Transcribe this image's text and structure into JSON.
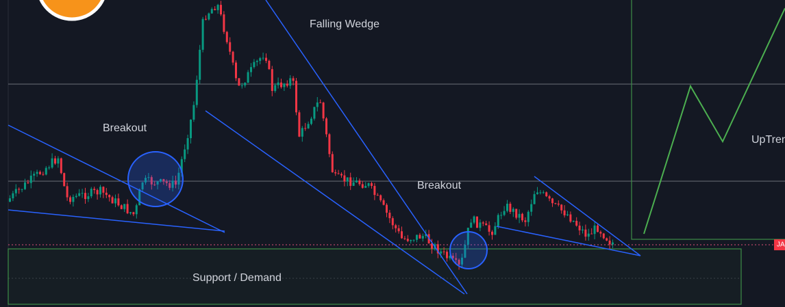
{
  "annotations": {
    "falling_wedge": "Falling Wedge",
    "breakout_left": "Breakout",
    "breakout_right": "Breakout",
    "support": "Support / Demand",
    "uptrend": "UpTrend"
  },
  "price_tag": "JA"
}
